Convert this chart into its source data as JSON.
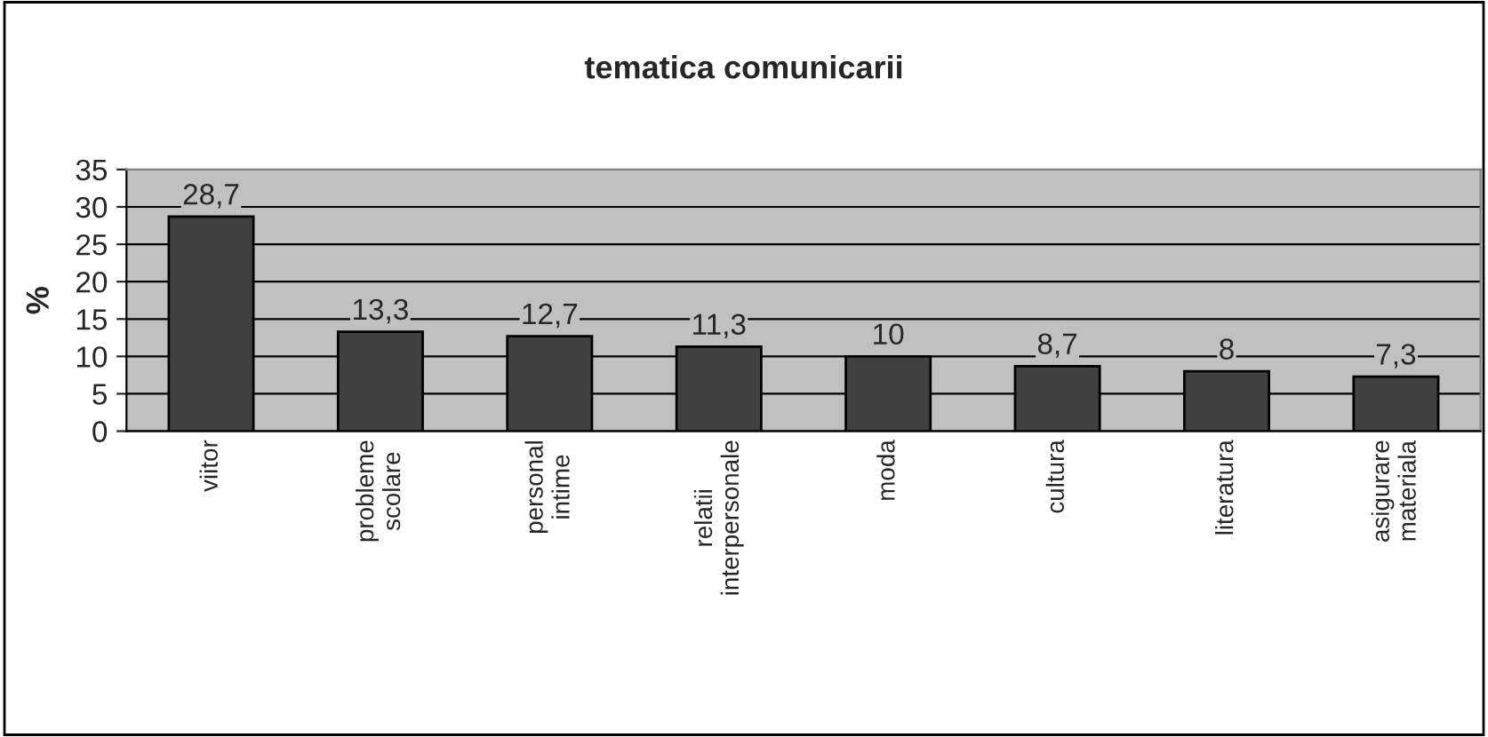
{
  "chart_data": {
    "type": "bar",
    "title": "tematica comunicarii",
    "ylabel": "%",
    "categories": [
      "viitor",
      "probleme\nscolare",
      "personal\nintime",
      "relatii\ninterpersonale",
      "moda",
      "cultura",
      "literatura",
      "asigurare\nmateriala"
    ],
    "values": [
      28.7,
      13.3,
      12.7,
      11.3,
      10,
      8.7,
      8,
      7.3
    ],
    "value_labels": [
      "28,7",
      "13,3",
      "12,7",
      "11,3",
      "10",
      "8,7",
      "8",
      "7,3"
    ],
    "color": "#404040",
    "ylim": [
      0,
      35
    ],
    "yticks": [
      0,
      5,
      10,
      15,
      20,
      25,
      30,
      35
    ],
    "grid": "y",
    "legend": false
  }
}
